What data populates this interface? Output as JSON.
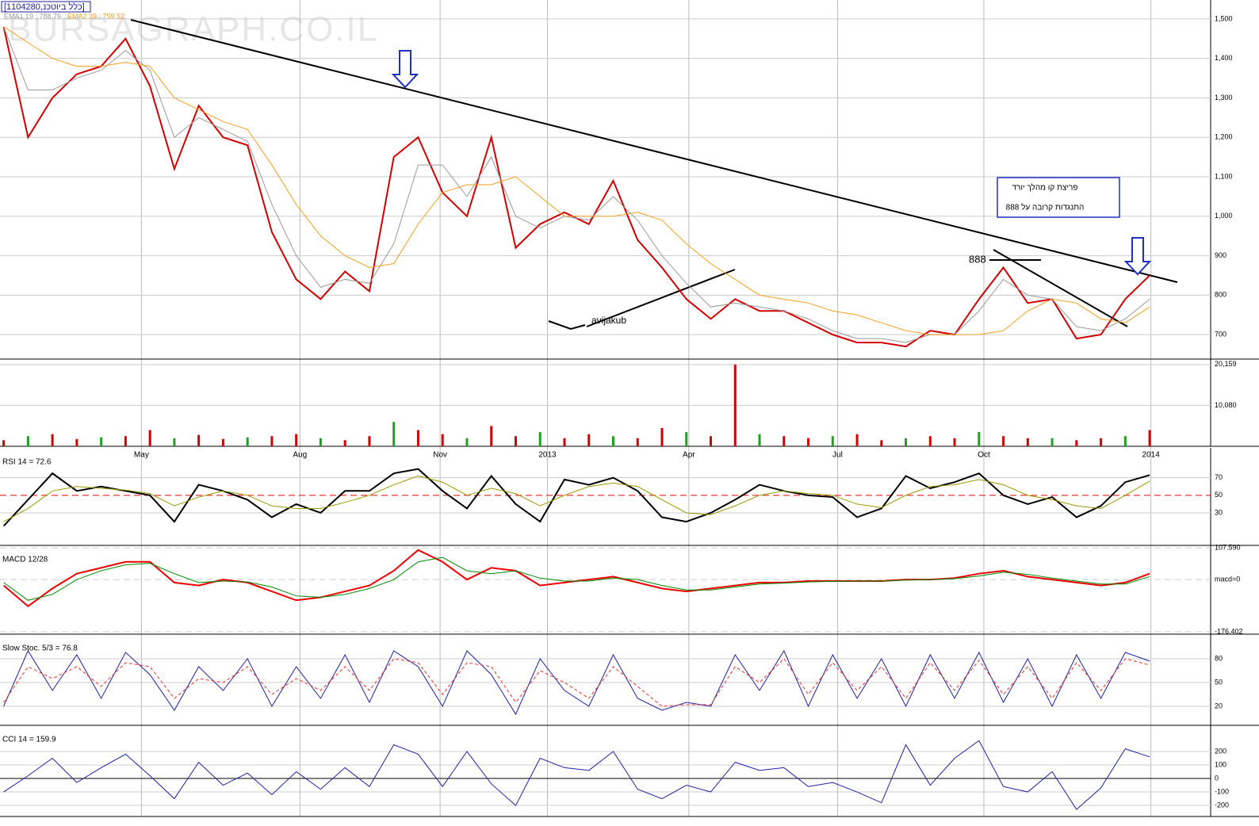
{
  "chart_data": [
    {
      "type": "line",
      "title": "[1104280,כלל ביוטכנ]",
      "watermark": "BURSAGRAPH.CO.IL",
      "x": [
        0,
        2,
        4,
        6,
        8,
        10,
        12,
        14,
        16,
        18,
        20,
        22,
        24,
        26,
        28,
        30,
        32,
        34,
        36,
        38,
        40,
        42,
        44,
        46,
        48,
        50,
        52,
        54,
        56,
        58,
        60,
        62,
        64,
        66,
        68,
        70,
        72,
        74,
        76,
        78,
        80,
        82,
        84,
        86,
        88,
        90,
        92,
        94
      ],
      "xlim": [
        -0.3,
        99
      ],
      "ylim": [
        638,
        1548
      ],
      "yticks": [
        700,
        800,
        900,
        {
          "value": 1000,
          "label": "1,000"
        },
        {
          "value": 1100,
          "label": "1,100"
        },
        {
          "value": 1200,
          "label": "1,200"
        },
        {
          "value": 1300,
          "label": "1,300"
        },
        {
          "value": 1400,
          "label": "1,400"
        },
        {
          "value": 1500,
          "label": "1,500"
        }
      ],
      "series": [
        {
          "color": "#d00000",
          "values": [
            1480,
            1200,
            1300,
            1360,
            1380,
            1450,
            1330,
            1120,
            1280,
            1200,
            1180,
            960,
            840,
            790,
            860,
            810,
            1150,
            1200,
            1060,
            1000,
            1200,
            920,
            980,
            1010,
            980,
            1090,
            940,
            870,
            790,
            740,
            790,
            760,
            760,
            730,
            700,
            680,
            680,
            670,
            710,
            700,
            790,
            870,
            780,
            790,
            690,
            700,
            790,
            850
          ]
        },
        {
          "name": "EMA1 19 : 788.76",
          "color": "#999999",
          "values": [
            1480,
            1320,
            1320,
            1350,
            1370,
            1420,
            1370,
            1200,
            1250,
            1220,
            1190,
            1030,
            900,
            820,
            840,
            830,
            930,
            1130,
            1130,
            1050,
            1150,
            1000,
            970,
            1000,
            990,
            1050,
            990,
            900,
            830,
            770,
            780,
            770,
            760,
            740,
            710,
            690,
            690,
            680,
            700,
            700,
            760,
            840,
            800,
            790,
            720,
            710,
            740,
            790
          ]
        },
        {
          "name": "EMA2 39 : 759.52",
          "color": "#f0a020",
          "values": [
            1480,
            1440,
            1400,
            1380,
            1380,
            1390,
            1380,
            1300,
            1270,
            1240,
            1220,
            1130,
            1030,
            950,
            900,
            870,
            880,
            980,
            1060,
            1080,
            1080,
            1100,
            1050,
            1000,
            1000,
            1000,
            1010,
            990,
            930,
            880,
            840,
            800,
            790,
            780,
            760,
            750,
            730,
            710,
            700,
            700,
            700,
            710,
            760,
            790,
            780,
            740,
            730,
            770
          ]
        }
      ],
      "annotations": [
        "888",
        "avijakub",
        "פריצת קו מהלך יורד",
        "התנגדות קרובה על 888"
      ]
    },
    {
      "type": "bar",
      "ylim": [
        0,
        21500
      ],
      "yticks": [
        {
          "value": 10080,
          "label": "10,080"
        },
        {
          "value": 20159,
          "label": "20,159"
        }
      ],
      "xticks": [
        {
          "value": 11.3,
          "label": "May"
        },
        {
          "value": 24.3,
          "label": "Aug"
        },
        {
          "value": 35.8,
          "label": "Nov"
        },
        {
          "value": 44.6,
          "label": "2013"
        },
        {
          "value": 56.2,
          "label": "Apr"
        },
        {
          "value": 68.4,
          "label": "Jul"
        },
        {
          "value": 80.4,
          "label": "Oct"
        },
        {
          "value": 94.1,
          "label": "2014"
        }
      ],
      "series": [
        {
          "color": "#d00000",
          "values": [
            1500,
            2500,
            3000,
            1800,
            2200,
            2500,
            4000,
            2000,
            2800,
            1800,
            2200,
            2500,
            3000,
            2000,
            1500,
            2500,
            6000,
            4000,
            3000,
            2000,
            5000,
            2500,
            3500,
            2000,
            3000,
            2500,
            2000,
            4500,
            3500,
            2500,
            20159,
            3000,
            2500,
            2000,
            2500,
            3000,
            1500,
            2000,
            2500,
            2000,
            3500,
            2500,
            2000,
            2000,
            1500,
            2000,
            2500,
            4000
          ]
        }
      ]
    },
    {
      "type": "line",
      "title": "RSI 14 = 72.6",
      "ylim": [
        -7,
        104
      ],
      "yticks": [
        30,
        50,
        70
      ],
      "series": [
        {
          "color": "#000000",
          "values": [
            15,
            45,
            75,
            55,
            60,
            55,
            50,
            20,
            62,
            55,
            45,
            25,
            40,
            30,
            55,
            55,
            75,
            80,
            55,
            35,
            72,
            40,
            20,
            68,
            62,
            70,
            55,
            25,
            20,
            30,
            45,
            62,
            55,
            50,
            48,
            25,
            35,
            72,
            58,
            65,
            75,
            50,
            40,
            48,
            25,
            38,
            65,
            73
          ]
        },
        {
          "color": "#999900",
          "values": [
            20,
            35,
            55,
            60,
            58,
            56,
            52,
            38,
            48,
            55,
            50,
            38,
            35,
            35,
            42,
            50,
            62,
            72,
            65,
            50,
            58,
            52,
            38,
            50,
            60,
            64,
            60,
            45,
            30,
            28,
            38,
            50,
            55,
            52,
            50,
            40,
            36,
            50,
            60,
            62,
            68,
            62,
            50,
            45,
            38,
            35,
            50,
            66
          ]
        }
      ]
    },
    {
      "type": "line",
      "title": "MACD 12/28",
      "ylim": [
        -176.402,
        107.59
      ],
      "yticks": [
        {
          "value": -176.402,
          "label": "-176.402"
        },
        {
          "value": 0,
          "label": "macd=0"
        },
        {
          "value": 107.59,
          "label": "107.590"
        }
      ],
      "series": [
        {
          "color": "#ee0000",
          "values": [
            -20,
            -90,
            -30,
            20,
            40,
            60,
            60,
            -10,
            -20,
            0,
            -10,
            -40,
            -70,
            -60,
            -40,
            -20,
            30,
            100,
            60,
            0,
            40,
            30,
            -20,
            -10,
            0,
            10,
            -10,
            -30,
            -40,
            -30,
            -20,
            -10,
            -10,
            -5,
            -5,
            -5,
            -5,
            0,
            0,
            5,
            20,
            30,
            10,
            0,
            -10,
            -20,
            -10,
            20
          ]
        },
        {
          "color": "#008800",
          "values": [
            -10,
            -70,
            -50,
            0,
            30,
            50,
            55,
            20,
            -10,
            -5,
            -8,
            -25,
            -55,
            -60,
            -50,
            -30,
            0,
            60,
            75,
            30,
            20,
            30,
            5,
            -5,
            -5,
            5,
            0,
            -20,
            -35,
            -35,
            -25,
            -15,
            -12,
            -8,
            -6,
            -5,
            -5,
            -2,
            0,
            3,
            12,
            25,
            18,
            5,
            -5,
            -15,
            -15,
            10
          ]
        }
      ]
    },
    {
      "type": "line",
      "title": "Slow Stoc. 5/3 = 76.8",
      "ylim": [
        -4,
        111
      ],
      "yticks": [
        20,
        50,
        80
      ],
      "series": [
        {
          "color": "#2020a0",
          "values": [
            20,
            90,
            40,
            85,
            30,
            88,
            60,
            15,
            70,
            40,
            80,
            20,
            70,
            30,
            85,
            25,
            90,
            70,
            20,
            90,
            60,
            10,
            80,
            40,
            20,
            85,
            30,
            15,
            25,
            20,
            85,
            40,
            90,
            20,
            85,
            30,
            80,
            20,
            85,
            30,
            88,
            25,
            80,
            20,
            85,
            30,
            88,
            77
          ]
        },
        {
          "color": "#ee3030",
          "values": [
            25,
            70,
            55,
            70,
            45,
            75,
            70,
            30,
            55,
            50,
            70,
            35,
            55,
            40,
            70,
            40,
            80,
            75,
            35,
            75,
            70,
            25,
            65,
            50,
            30,
            70,
            45,
            20,
            22,
            22,
            70,
            50,
            80,
            35,
            75,
            40,
            70,
            30,
            75,
            40,
            78,
            35,
            70,
            30,
            75,
            40,
            80,
            72
          ]
        }
      ]
    },
    {
      "type": "line",
      "title": "CCI 14 = 159.9",
      "ylim": [
        -282,
        394
      ],
      "yticks": [
        -200,
        -100,
        0,
        100,
        200
      ],
      "series": [
        {
          "color": "#2020a0",
          "values": [
            -100,
            20,
            150,
            -30,
            80,
            180,
            20,
            -150,
            120,
            -50,
            40,
            -120,
            50,
            -80,
            80,
            -60,
            250,
            180,
            -60,
            200,
            -40,
            -200,
            150,
            80,
            60,
            200,
            -80,
            -150,
            -50,
            -100,
            120,
            60,
            80,
            -60,
            -30,
            -100,
            -180,
            250,
            -50,
            150,
            280,
            -60,
            -100,
            50,
            -230,
            -70,
            220,
            159.9
          ]
        }
      ]
    }
  ]
}
